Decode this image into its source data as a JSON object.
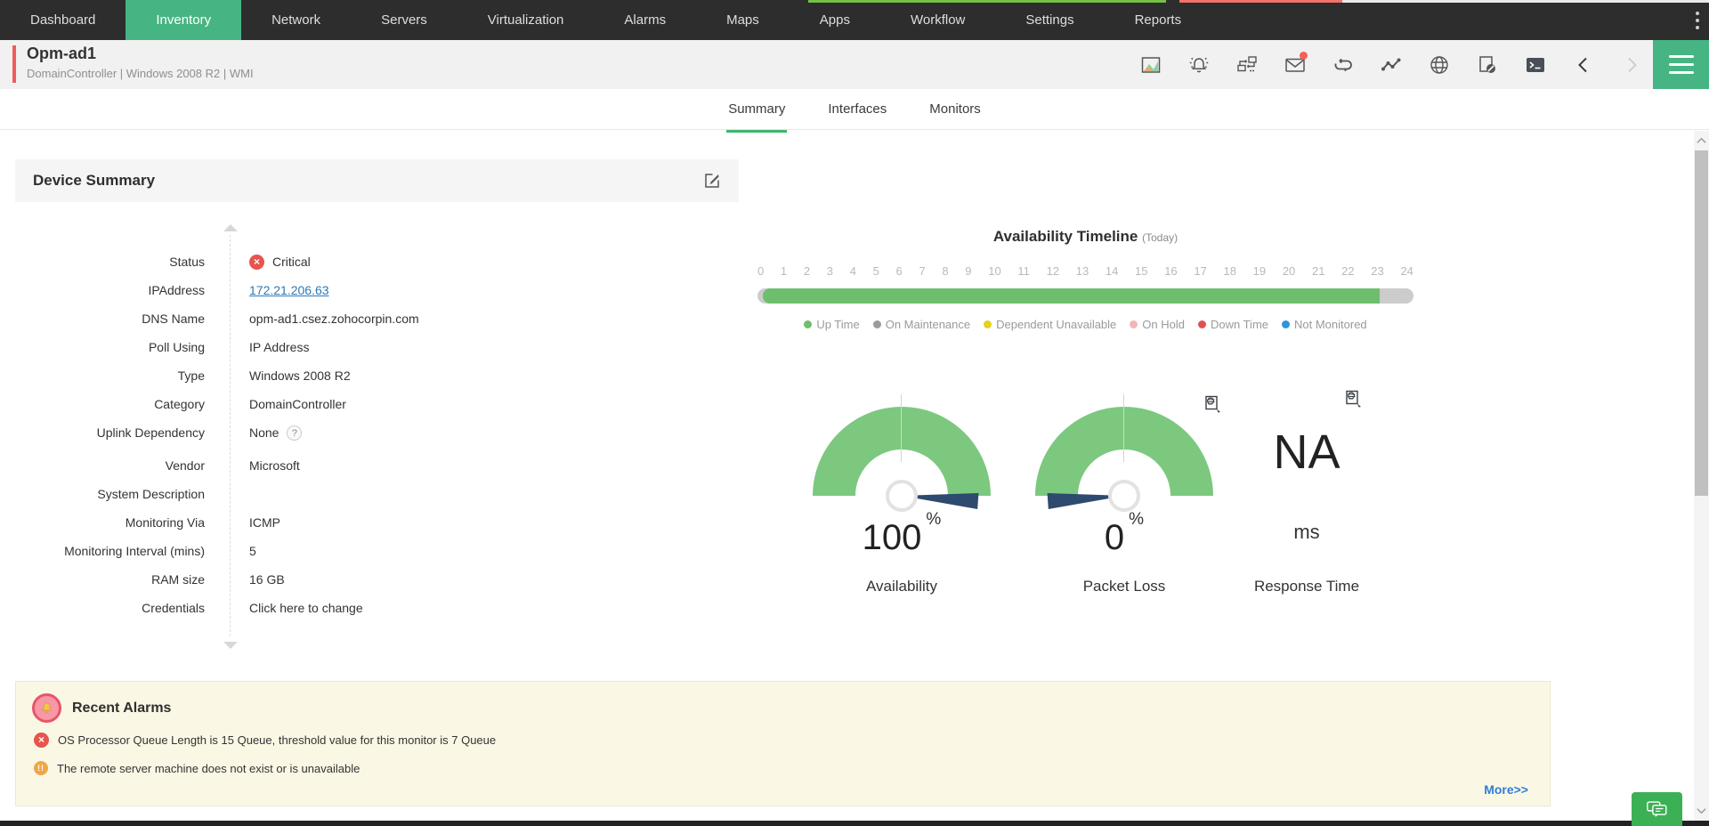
{
  "page": {
    "progress_colors": {
      "loaded": "#74c044",
      "error": "#f4716b",
      "remaining": "#e9e9e9"
    }
  },
  "topnav": {
    "active_bg": "#46b483",
    "items": [
      {
        "label": "Dashboard",
        "active": false
      },
      {
        "label": "Inventory",
        "active": true
      },
      {
        "label": "Network",
        "active": false
      },
      {
        "label": "Servers",
        "active": false
      },
      {
        "label": "Virtualization",
        "active": false
      },
      {
        "label": "Alarms",
        "active": false
      },
      {
        "label": "Maps",
        "active": false
      },
      {
        "label": "Apps",
        "active": false
      },
      {
        "label": "Workflow",
        "active": false
      },
      {
        "label": "Settings",
        "active": false
      },
      {
        "label": "Reports",
        "active": false
      }
    ]
  },
  "device_header": {
    "title": "Opm-ad1",
    "subtitle": "DomainController | Windows 2008 R2  | WMI",
    "toolbar_icons": [
      "performance-report",
      "alarm",
      "manage-device",
      "email",
      "rediscover",
      "monitor-graph",
      "web-globe",
      "suppress",
      "terminal",
      "previous-device",
      "next-device",
      "menu"
    ]
  },
  "tabs": {
    "items": [
      {
        "label": "Summary",
        "active": true
      },
      {
        "label": "Interfaces",
        "active": false
      },
      {
        "label": "Monitors",
        "active": false
      }
    ]
  },
  "device_summary": {
    "title": "Device Summary",
    "fields": [
      {
        "label": "Status",
        "value": "Critical",
        "kind": "status-critical"
      },
      {
        "label": "IPAddress",
        "value": "172.21.206.63",
        "kind": "link"
      },
      {
        "label": "DNS Name",
        "value": "opm-ad1.csez.zohocorpin.com",
        "kind": "text"
      },
      {
        "label": "Poll Using",
        "value": "IP Address",
        "kind": "text"
      },
      {
        "label": "Type",
        "value": "Windows 2008 R2",
        "kind": "text"
      },
      {
        "label": "Category",
        "value": "DomainController",
        "kind": "text"
      },
      {
        "label": "Uplink Dependency",
        "value": "None",
        "kind": "help"
      },
      {
        "label": "Vendor",
        "value": "Microsoft",
        "kind": "text"
      },
      {
        "label": "System Description",
        "value": "",
        "kind": "text"
      },
      {
        "label": "Monitoring Via",
        "value": "ICMP",
        "kind": "text"
      },
      {
        "label": "Monitoring Interval (mins)",
        "value": "5",
        "kind": "text"
      },
      {
        "label": "RAM size",
        "value": "16 GB",
        "kind": "text"
      },
      {
        "label": "Credentials",
        "value": "Click here to change",
        "kind": "action"
      }
    ]
  },
  "availability_timeline": {
    "title": "Availability Timeline",
    "subtitle": "(Today)",
    "hours": [
      "0",
      "1",
      "2",
      "3",
      "4",
      "5",
      "6",
      "7",
      "8",
      "9",
      "10",
      "11",
      "12",
      "13",
      "14",
      "15",
      "16",
      "17",
      "18",
      "19",
      "20",
      "21",
      "22",
      "23",
      "24"
    ],
    "up_time_percent": 94,
    "bar": {
      "track_color": "#cccccc",
      "fill_color": "#6dbf6d"
    },
    "legend": [
      {
        "label": "Up Time",
        "color": "#6dbf6d"
      },
      {
        "label": "On Maintenance",
        "color": "#9b9b9b"
      },
      {
        "label": "Dependent Unavailable",
        "color": "#e5d11e"
      },
      {
        "label": "On Hold",
        "color": "#f3b5b5"
      },
      {
        "label": "Down Time",
        "color": "#e05252"
      },
      {
        "label": "Not Monitored",
        "color": "#2e95d8"
      }
    ]
  },
  "dials": {
    "arc_color": "#7cc87f",
    "needle_color": "#2e4a6e",
    "availability": {
      "value": "100",
      "unit": "%",
      "label": "Availability",
      "needle_deg": 4
    },
    "packet_loss": {
      "value": "0",
      "unit": "%",
      "label": "Packet Loss",
      "needle_deg": 176
    },
    "response_time": {
      "value": "NA",
      "unit": "ms",
      "label": "Response Time"
    }
  },
  "recent_alarms": {
    "title": "Recent Alarms",
    "items": [
      {
        "severity": "critical",
        "message": "OS Processor Queue Length is 15 Queue, threshold value for this monitor is 7 Queue"
      },
      {
        "severity": "warning",
        "message": "The remote server machine does not exist or is unavailable"
      }
    ],
    "more_label": "More>>"
  }
}
